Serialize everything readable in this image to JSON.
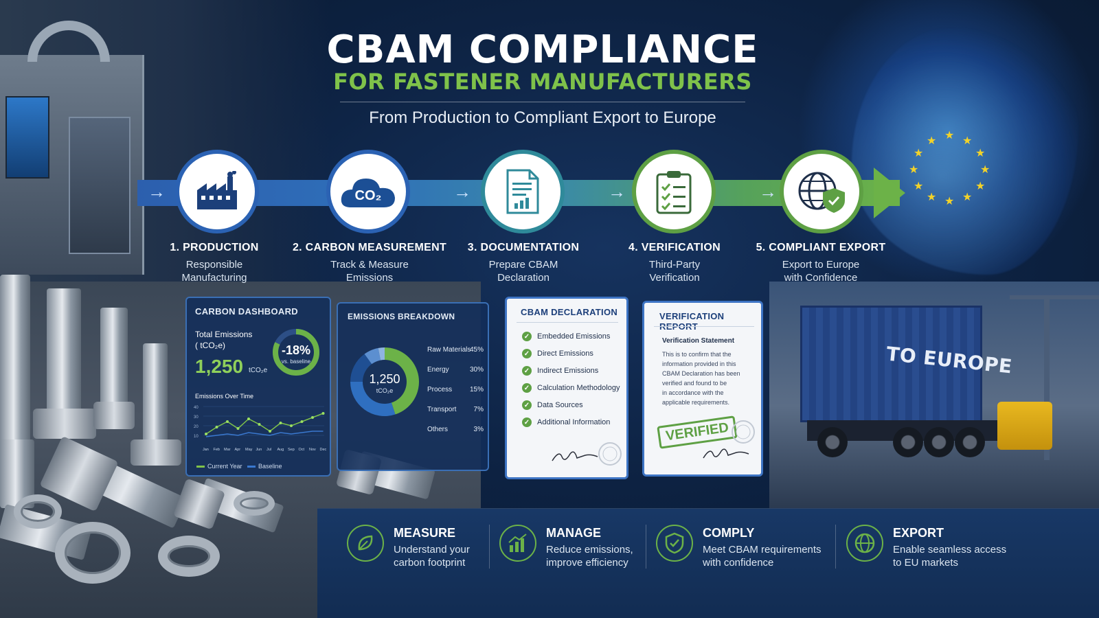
{
  "header": {
    "title": "CBAM COMPLIANCE",
    "subtitle": "FOR FASTENER MANUFACTURERS",
    "tagline": "From Production to Compliant Export to Europe"
  },
  "steps": [
    {
      "title": "1. PRODUCTION",
      "desc_line1": "Responsible",
      "desc_line2": "Manufacturing",
      "icon": "factory-icon"
    },
    {
      "title": "2. CARBON MEASUREMENT",
      "desc_line1": "Track & Measure",
      "desc_line2": "Emissions",
      "icon": "co2-cloud-icon",
      "icon_text": "CO₂"
    },
    {
      "title": "3. DOCUMENTATION",
      "desc_line1": "Prepare CBAM",
      "desc_line2": "Declaration",
      "icon": "document-icon"
    },
    {
      "title": "4. VERIFICATION",
      "desc_line1": "Third-Party",
      "desc_line2": "Verification",
      "icon": "clipboard-check-icon"
    },
    {
      "title": "5. COMPLIANT EXPORT",
      "desc_line1": "Export to Europe",
      "desc_line2": "with Confidence",
      "icon": "globe-shield-icon"
    }
  ],
  "carbon_dashboard": {
    "title": "CARBON DASHBOARD",
    "total_label": "Total Emissions",
    "total_unit_label": "( tCO₂e)",
    "total_value": "1,250",
    "total_unit": "tCO₂e",
    "change_value": "-18%",
    "change_label": "vs. baseline",
    "change_fraction": 0.82,
    "chart_title": "Emissions Over Time",
    "months": [
      "Jan",
      "Feb",
      "Mar",
      "Apr",
      "May",
      "Jun",
      "Jul",
      "Aug",
      "Sep",
      "Oct",
      "Nov",
      "Dec"
    ],
    "legend_current": "Current Year",
    "legend_baseline": "Baseline",
    "y_ticks": [
      "40",
      "30",
      "20",
      "10"
    ]
  },
  "emissions_breakdown": {
    "title": "EMISSIONS BREAKDOWN",
    "center_value": "1,250",
    "center_unit": "tCO₂e",
    "items": [
      {
        "label": "Raw Materials",
        "value": "45%",
        "pct": 45,
        "color": "#6cb248"
      },
      {
        "label": "Energy",
        "value": "30%",
        "pct": 30,
        "color": "#2f6fc0"
      },
      {
        "label": "Process",
        "value": "15%",
        "pct": 15,
        "color": "#1f4f93"
      },
      {
        "label": "Transport",
        "value": "7%",
        "pct": 7,
        "color": "#5c8fd0"
      },
      {
        "label": "Others",
        "value": "3%",
        "pct": 3,
        "color": "#8fb4e0"
      }
    ]
  },
  "cbam_declaration": {
    "title": "CBAM DECLARATION",
    "items": [
      "Embedded Emissions",
      "Direct Emissions",
      "Indirect Emissions",
      "Calculation Methodology",
      "Data Sources",
      "Additional Information"
    ]
  },
  "verification_report": {
    "title": "VERIFICATION REPORT",
    "statement_title": "Verification Statement",
    "statement_lines": [
      "This is to confirm that the",
      "information provided in this",
      "CBAM Declaration has been",
      "verified and found to be",
      "in accordance with the",
      "applicable requirements."
    ],
    "stamp": "VERIFIED"
  },
  "container": {
    "label": "TO EUROPE"
  },
  "benefits": [
    {
      "title": "MEASURE",
      "line1": "Understand your",
      "line2": "carbon footprint",
      "icon": "leaf-icon"
    },
    {
      "title": "MANAGE",
      "line1": "Reduce emissions,",
      "line2": "improve efficiency",
      "icon": "bar-growth-icon"
    },
    {
      "title": "COMPLY",
      "line1": "Meet CBAM requirements",
      "line2": "with confidence",
      "icon": "shield-check-icon"
    },
    {
      "title": "EXPORT",
      "line1": "Enable seamless access",
      "line2": "to EU markets",
      "icon": "globe-icon"
    }
  ],
  "colors": {
    "accent_green": "#7fc24a",
    "accent_blue": "#2b62b3",
    "teal": "#2f8a9a",
    "eu_star": "#f2d22a"
  }
}
